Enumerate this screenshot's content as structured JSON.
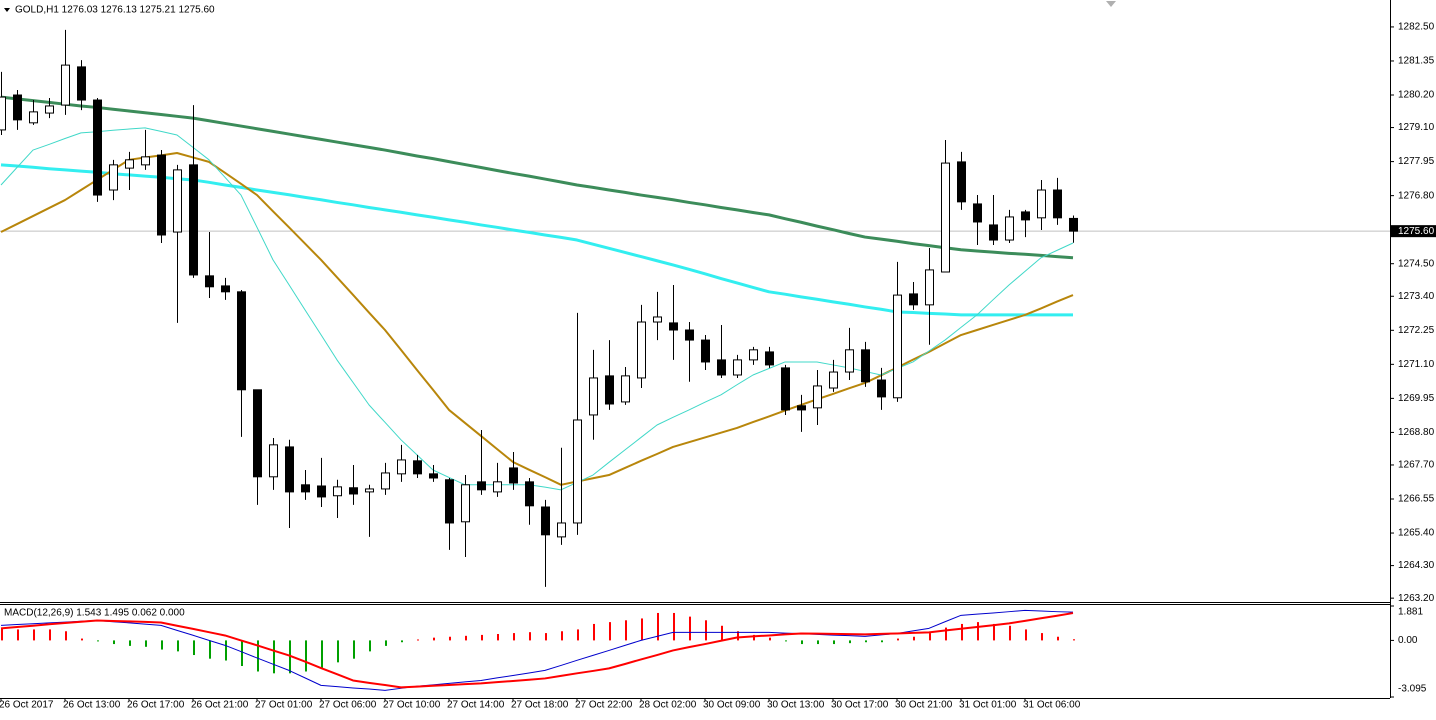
{
  "chart_data": [
    {
      "type": "candlestick",
      "title": "GOLD,H1  1276.03 1276.13 1275.21 1275.60",
      "categories": [
        "26 Oct 2017",
        null,
        null,
        null,
        "26 Oct 13:00",
        null,
        null,
        null,
        "26 Oct 17:00",
        null,
        null,
        null,
        "26 Oct 21:00",
        null,
        null,
        null,
        "27 Oct 01:00",
        null,
        null,
        null,
        "27 Oct 06:00",
        null,
        null,
        null,
        "27 Oct 10:00",
        null,
        null,
        null,
        "27 Oct 14:00",
        null,
        null,
        null,
        "27 Oct 18:00",
        null,
        null,
        null,
        "27 Oct 22:00",
        null,
        null,
        null,
        "28 Oct 02:00",
        null,
        null,
        null,
        "30 Oct 09:00",
        null,
        null,
        null,
        "30 Oct 13:00",
        null,
        null,
        null,
        "30 Oct 17:00",
        null,
        null,
        null,
        "30 Oct 21:00",
        null,
        null,
        null,
        "31 Oct 01:00",
        null,
        null,
        null,
        "31 Oct 06:00",
        null,
        null,
        null
      ],
      "open": [
        1279.02,
        1280.2,
        1279.26,
        1279.59,
        1279.86,
        1281.15,
        1280.03,
        1276.99,
        1277.73,
        1277.84,
        1278.17,
        1275.57,
        1277.84,
        1274.09,
        1273.75,
        1273.55,
        1270.24,
        1267.3,
        1268.31,
        1267.03,
        1266.99,
        1266.66,
        1266.93,
        1266.79,
        1266.89,
        1267.4,
        1267.84,
        1267.4,
        1267.2,
        1265.78,
        1267.13,
        1266.79,
        1267.6,
        1267.13,
        1266.28,
        1265.27,
        1265.74,
        1269.39,
        1270.71,
        1269.83,
        1270.64,
        1272.53,
        1272.5,
        1272.26,
        1271.92,
        1271.25,
        1270.74,
        1271.25,
        1271.52,
        1270.98,
        1269.7,
        1269.63,
        1270.3,
        1270.84,
        1271.59,
        1270.57,
        1269.97,
        1273.48,
        1273.11,
        1274.22,
        1277.94,
        1276.52,
        1275.81,
        1275.3,
        1276.25,
        1276.05,
        1276.99,
        1276.03
      ],
      "high": [
        1280.98,
        1280.37,
        1280.03,
        1280.1,
        1282.4,
        1281.38,
        1280.1,
        1278.01,
        1278.28,
        1279.02,
        1278.34,
        1277.84,
        1279.86,
        1275.57,
        1274.02,
        1273.61,
        1270.24,
        1268.61,
        1268.55,
        1267.53,
        1267.94,
        1267.2,
        1267.7,
        1267.03,
        1267.77,
        1268.38,
        1268.04,
        1267.7,
        1267.26,
        1267.36,
        1268.88,
        1267.77,
        1268.14,
        1267.26,
        1266.52,
        1268.28,
        1272.84,
        1271.59,
        1271.92,
        1271.01,
        1273.11,
        1273.55,
        1273.78,
        1272.53,
        1272.09,
        1272.43,
        1271.42,
        1271.69,
        1271.69,
        1271.08,
        1270.07,
        1270.91,
        1271.25,
        1272.33,
        1271.86,
        1270.98,
        1274.56,
        1273.88,
        1275.03,
        1278.68,
        1278.28,
        1276.82,
        1276.82,
        1276.32,
        1276.32,
        1277.33,
        1277.4,
        1276.13
      ],
      "low": [
        1278.85,
        1279.02,
        1279.19,
        1279.42,
        1279.53,
        1279.69,
        1276.59,
        1276.65,
        1276.99,
        1277.67,
        1275.2,
        1272.5,
        1274.02,
        1273.34,
        1273.28,
        1268.65,
        1266.35,
        1266.86,
        1265.57,
        1266.52,
        1266.28,
        1265.91,
        1266.35,
        1265.27,
        1266.69,
        1267.13,
        1267.26,
        1267.13,
        1264.83,
        1264.59,
        1266.69,
        1266.62,
        1266.86,
        1265.68,
        1263.58,
        1265.0,
        1265.34,
        1268.55,
        1269.56,
        1269.73,
        1270.3,
        1271.92,
        1271.25,
        1270.51,
        1270.91,
        1270.64,
        1270.64,
        1271.08,
        1270.98,
        1269.39,
        1268.82,
        1269.05,
        1270.17,
        1270.57,
        1270.34,
        1269.56,
        1269.83,
        1272.94,
        1271.76,
        1274.22,
        1276.32,
        1275.13,
        1275.13,
        1275.2,
        1275.4,
        1275.64,
        1275.81,
        1275.21
      ],
      "close": [
        1280.13,
        1279.36,
        1279.63,
        1279.83,
        1281.21,
        1280.03,
        1276.82,
        1277.84,
        1278.01,
        1278.11,
        1275.47,
        1277.67,
        1274.12,
        1273.72,
        1273.55,
        1270.24,
        1267.3,
        1268.38,
        1266.79,
        1266.79,
        1266.62,
        1266.96,
        1266.72,
        1266.89,
        1267.43,
        1267.87,
        1267.4,
        1267.26,
        1265.74,
        1267.03,
        1266.86,
        1267.13,
        1267.09,
        1266.32,
        1265.34,
        1265.74,
        1269.22,
        1270.64,
        1269.76,
        1270.71,
        1272.53,
        1272.7,
        1272.26,
        1271.92,
        1271.18,
        1270.74,
        1271.25,
        1271.59,
        1271.08,
        1269.56,
        1269.56,
        1270.37,
        1270.84,
        1271.59,
        1270.51,
        1270.0,
        1273.44,
        1273.11,
        1274.29,
        1277.9,
        1276.59,
        1275.91,
        1275.3,
        1276.08,
        1275.98,
        1276.99,
        1276.05,
        1275.6
      ],
      "up_color": "#ffffff",
      "down_color": "#000000",
      "series": [
        {
          "color": "#3c8c5a",
          "line_width": 3,
          "values": [
            1280.13,
            1280.07,
            1280.01,
            1279.95,
            1279.89,
            1279.83,
            1279.78,
            1279.72,
            1279.66,
            1279.6,
            1279.54,
            1279.48,
            1279.42,
            1279.33,
            1279.24,
            1279.15,
            1279.06,
            1278.97,
            1278.88,
            1278.79,
            1278.7,
            1278.61,
            1278.52,
            1278.43,
            1278.34,
            1278.24,
            1278.14,
            1278.05,
            1277.95,
            1277.85,
            1277.75,
            1277.65,
            1277.55,
            1277.46,
            1277.36,
            1277.26,
            1277.16,
            1277.08,
            1276.99,
            1276.91,
            1276.82,
            1276.74,
            1276.66,
            1276.57,
            1276.49,
            1276.4,
            1276.32,
            1276.23,
            1276.15,
            1276.02,
            1275.9,
            1275.77,
            1275.65,
            1275.52,
            1275.4,
            1275.33,
            1275.26,
            1275.18,
            1275.11,
            1275.04,
            1274.97,
            1274.93,
            1274.89,
            1274.85,
            1274.82,
            1274.78,
            1274.74,
            1274.7
          ]
        },
        {
          "color": "#33eef0",
          "line_width": 3,
          "values": [
            1277.84,
            1277.8,
            1277.76,
            1277.71,
            1277.67,
            1277.63,
            1277.59,
            1277.54,
            1277.5,
            1277.46,
            1277.42,
            1277.37,
            1277.33,
            1277.25,
            1277.16,
            1277.08,
            1276.99,
            1276.91,
            1276.83,
            1276.74,
            1276.66,
            1276.57,
            1276.49,
            1276.4,
            1276.32,
            1276.24,
            1276.15,
            1276.07,
            1275.98,
            1275.9,
            1275.81,
            1275.73,
            1275.64,
            1275.56,
            1275.47,
            1275.39,
            1275.3,
            1275.16,
            1275.02,
            1274.88,
            1274.74,
            1274.6,
            1274.46,
            1274.31,
            1274.16,
            1274.0,
            1273.85,
            1273.7,
            1273.55,
            1273.47,
            1273.38,
            1273.3,
            1273.21,
            1273.13,
            1273.04,
            1272.96,
            1272.87,
            1272.85,
            1272.82,
            1272.8,
            1272.77,
            1272.77,
            1272.77,
            1272.77,
            1272.77,
            1272.77,
            1272.77,
            1272.77
          ]
        },
        {
          "color": "#b8860b",
          "line_width": 2,
          "values": [
            1275.57,
            1275.84,
            1276.11,
            1276.38,
            1276.65,
            1276.99,
            1277.33,
            1277.67,
            1278.01,
            1278.09,
            1278.16,
            1278.24,
            1278.09,
            1277.94,
            1277.57,
            1277.2,
            1276.82,
            1276.27,
            1275.73,
            1275.18,
            1274.63,
            1274.04,
            1273.45,
            1272.85,
            1272.26,
            1271.59,
            1270.91,
            1270.24,
            1269.56,
            1269.12,
            1268.68,
            1268.24,
            1267.8,
            1267.54,
            1267.29,
            1267.03,
            1267.14,
            1267.25,
            1267.36,
            1267.6,
            1267.84,
            1268.07,
            1268.31,
            1268.47,
            1268.63,
            1268.79,
            1268.95,
            1269.15,
            1269.34,
            1269.54,
            1269.73,
            1269.92,
            1270.1,
            1270.29,
            1270.47,
            1270.73,
            1270.99,
            1271.26,
            1271.52,
            1271.81,
            1272.09,
            1272.26,
            1272.43,
            1272.6,
            1272.77,
            1272.99,
            1273.22,
            1273.44
          ]
        },
        {
          "color": "#40d8c8",
          "line_width": 1,
          "values": [
            1277.16,
            1277.75,
            1278.34,
            1278.53,
            1278.73,
            1278.92,
            1278.96,
            1279.01,
            1279.05,
            1279.09,
            1278.97,
            1278.85,
            1278.43,
            1278.01,
            1277.42,
            1276.82,
            1275.73,
            1274.63,
            1273.79,
            1272.94,
            1272.1,
            1271.25,
            1270.49,
            1269.73,
            1269.14,
            1268.55,
            1268.04,
            1267.53,
            1267.28,
            1267.03,
            1267.03,
            1267.03,
            1267.03,
            1267.03,
            1266.95,
            1266.86,
            1267.11,
            1267.36,
            1267.79,
            1268.21,
            1268.63,
            1269.05,
            1269.31,
            1269.56,
            1269.82,
            1270.07,
            1270.41,
            1270.74,
            1270.96,
            1271.18,
            1271.18,
            1271.18,
            1271.08,
            1270.98,
            1270.86,
            1270.74,
            1270.96,
            1271.18,
            1271.55,
            1271.92,
            1272.35,
            1272.77,
            1273.28,
            1273.78,
            1274.24,
            1274.7,
            1274.95,
            1275.2
          ]
        }
      ],
      "price_line": {
        "value": 1275.6,
        "label": "1275.60"
      },
      "ylim": [
        1263.07,
        1283.41
      ],
      "yticks": [
        {
          "value": 1282.5,
          "label": "1282.50"
        },
        1281.35,
        {
          "value": 1280.2,
          "label": "1280.20"
        },
        {
          "value": 1279.1,
          "label": "1279.10"
        },
        1277.95,
        {
          "value": 1276.8,
          "label": "1276.80"
        },
        {
          "value": 1274.5,
          "label": "1274.50"
        },
        {
          "value": 1273.4,
          "label": "1273.40"
        },
        1272.25,
        {
          "value": 1271.1,
          "label": "1271.10"
        },
        1269.95,
        {
          "value": 1268.8,
          "label": "1268.80"
        },
        {
          "value": 1267.7,
          "label": "1267.70"
        },
        1266.55,
        {
          "value": 1265.4,
          "label": "1265.40"
        },
        {
          "value": 1264.3,
          "label": "1264.30"
        },
        {
          "value": 1263.2,
          "label": "1263.20"
        }
      ]
    },
    {
      "type": "macd",
      "title": "MACD(12,26,9) 1.543 1.495 0.062 0.000",
      "histogram": {
        "color": "#ff0000",
        "negative_color": "#00a000",
        "values": [
          0.7,
          0.6,
          0.6,
          0.6,
          0.5,
          0.1,
          -0.05,
          -0.2,
          -0.3,
          -0.35,
          -0.5,
          -0.6,
          -0.8,
          -1.0,
          -1.1,
          -1.4,
          -1.7,
          -1.8,
          -1.8,
          -1.7,
          -1.5,
          -1.2,
          -1.0,
          -0.6,
          -0.3,
          -0.1,
          0.05,
          0.15,
          0.2,
          0.25,
          0.3,
          0.35,
          0.4,
          0.45,
          0.4,
          0.5,
          0.6,
          0.9,
          1.0,
          1.1,
          1.2,
          1.5,
          1.5,
          1.3,
          1.1,
          0.8,
          0.5,
          0.3,
          0.15,
          -0.05,
          -0.2,
          -0.2,
          -0.2,
          -0.15,
          -0.1,
          -0.1,
          0.1,
          0.2,
          0.4,
          0.7,
          0.9,
          1.0,
          0.9,
          0.8,
          0.6,
          0.4,
          0.2,
          0.062
        ]
      },
      "series": [
        {
          "color": "#0000cc",
          "line_width": 1,
          "values": [
            0.82,
            0.87,
            0.91,
            0.96,
            1.0,
            1.05,
            1.09,
            1.02,
            0.96,
            0.89,
            0.82,
            0.55,
            0.28,
            0.0,
            -0.27,
            -0.61,
            -0.96,
            -1.3,
            -1.64,
            -2.05,
            -2.46,
            -2.53,
            -2.6,
            -2.66,
            -2.73,
            -2.62,
            -2.51,
            -2.43,
            -2.35,
            -2.27,
            -2.19,
            -2.05,
            -1.92,
            -1.78,
            -1.64,
            -1.37,
            -1.09,
            -0.82,
            -0.55,
            -0.27,
            0.0,
            0.22,
            0.44,
            0.44,
            0.44,
            0.44,
            0.44,
            0.44,
            0.44,
            0.4,
            0.37,
            0.33,
            0.29,
            0.26,
            0.22,
            0.3,
            0.38,
            0.52,
            0.66,
            1.02,
            1.37,
            1.44,
            1.5,
            1.57,
            1.64,
            1.61,
            1.57,
            1.543
          ]
        },
        {
          "color": "#ff0000",
          "line_width": 2,
          "values": [
            0.66,
            0.73,
            0.8,
            0.88,
            0.95,
            1.02,
            1.09,
            1.06,
            1.04,
            1.01,
            0.98,
            0.8,
            0.63,
            0.45,
            0.27,
            0.0,
            -0.27,
            -0.55,
            -0.82,
            -1.16,
            -1.51,
            -1.85,
            -2.19,
            -2.32,
            -2.44,
            -2.57,
            -2.53,
            -2.48,
            -2.44,
            -2.39,
            -2.35,
            -2.28,
            -2.22,
            -2.15,
            -2.08,
            -1.94,
            -1.8,
            -1.67,
            -1.53,
            -1.29,
            -1.04,
            -0.8,
            -0.55,
            -0.37,
            -0.2,
            -0.02,
            0.16,
            0.22,
            0.27,
            0.33,
            0.38,
            0.37,
            0.36,
            0.34,
            0.33,
            0.36,
            0.38,
            0.41,
            0.44,
            0.54,
            0.64,
            0.73,
            0.83,
            0.93,
            1.07,
            1.21,
            1.35,
            1.495
          ]
        }
      ],
      "ylim": [
        -3.095,
        1.881
      ],
      "yticks": [
        1.881,
        {
          "value": 0,
          "label": "0.00"
        },
        -3.095
      ]
    }
  ]
}
